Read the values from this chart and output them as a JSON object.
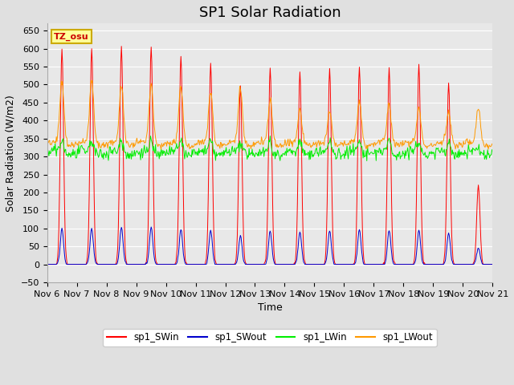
{
  "title": "SP1 Solar Radiation",
  "ylabel": "Solar Radiation (W/m2)",
  "xlabel": "Time",
  "ylim": [
    -50,
    670
  ],
  "yticks": [
    -50,
    0,
    50,
    100,
    150,
    200,
    250,
    300,
    350,
    400,
    450,
    500,
    550,
    600,
    650
  ],
  "xtick_labels": [
    "Nov 6",
    "Nov 7",
    "Nov 8",
    "Nov 9",
    "Nov 10",
    "Nov 11",
    "Nov 12",
    "Nov 13",
    "Nov 14",
    "Nov 15",
    "Nov 16",
    "Nov 17",
    "Nov 18",
    "Nov 19",
    "Nov 20",
    "Nov 21"
  ],
  "colors": {
    "SWin": "#ff0000",
    "SWout": "#0000cc",
    "LWin": "#00ee00",
    "LWout": "#ff9900"
  },
  "legend_labels": [
    "sp1_SWin",
    "sp1_SWout",
    "sp1_LWin",
    "sp1_LWout"
  ],
  "annotation_text": "TZ_osu",
  "annotation_color": "#cc0000",
  "annotation_bg": "#ffff99",
  "annotation_border": "#ccaa00",
  "num_days": 15,
  "SWin_peaks": [
    600,
    600,
    605,
    605,
    580,
    560,
    495,
    545,
    535,
    545,
    550,
    545,
    555,
    505,
    220
  ],
  "SWout_peaks": [
    100,
    100,
    103,
    103,
    98,
    95,
    80,
    93,
    90,
    95,
    97,
    95,
    95,
    88,
    45
  ],
  "LWin_base": 310,
  "LWout_base": 335,
  "LWout_peak_add": [
    175,
    180,
    165,
    165,
    160,
    145,
    155,
    120,
    95,
    90,
    120,
    110,
    100,
    90,
    100
  ],
  "title_fontsize": 13,
  "label_fontsize": 9,
  "tick_fontsize": 8
}
